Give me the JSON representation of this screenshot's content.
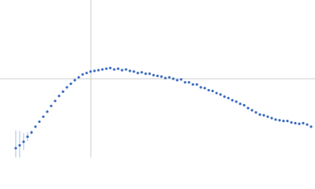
{
  "chart_data": {
    "type": "scatter",
    "color": "#3b6cc0",
    "error_color": "#a9bfe6",
    "guide_color": "#cccccc",
    "xlim": [
      0,
      6.0
    ],
    "ylim": [
      0,
      2.2
    ],
    "guides": {
      "x": 1.73,
      "y": 1.1
    },
    "x": [
      0.3,
      0.375,
      0.45,
      0.525,
      0.6,
      0.675,
      0.75,
      0.825,
      0.9,
      0.975,
      1.05,
      1.125,
      1.2,
      1.275,
      1.35,
      1.425,
      1.5,
      1.575,
      1.65,
      1.725,
      1.8,
      1.875,
      1.95,
      2.025,
      2.1,
      2.175,
      2.25,
      2.325,
      2.4,
      2.475,
      2.55,
      2.625,
      2.7,
      2.775,
      2.85,
      2.925,
      3.0,
      3.075,
      3.15,
      3.225,
      3.3,
      3.375,
      3.45,
      3.525,
      3.6,
      3.675,
      3.75,
      3.825,
      3.9,
      3.975,
      4.05,
      4.125,
      4.2,
      4.275,
      4.35,
      4.425,
      4.5,
      4.575,
      4.65,
      4.725,
      4.8,
      4.875,
      4.95,
      5.025,
      5.1,
      5.175,
      5.25,
      5.325,
      5.4,
      5.475,
      5.55,
      5.625,
      5.7,
      5.775,
      5.85,
      5.925
    ],
    "values": [
      0.13,
      0.17,
      0.22,
      0.29,
      0.35,
      0.43,
      0.5,
      0.57,
      0.64,
      0.72,
      0.79,
      0.86,
      0.92,
      0.98,
      1.03,
      1.08,
      1.12,
      1.16,
      1.18,
      1.2,
      1.21,
      1.22,
      1.23,
      1.24,
      1.25,
      1.23,
      1.24,
      1.22,
      1.23,
      1.21,
      1.2,
      1.18,
      1.19,
      1.17,
      1.17,
      1.15,
      1.14,
      1.13,
      1.11,
      1.12,
      1.1,
      1.08,
      1.09,
      1.05,
      1.05,
      1.02,
      1.02,
      0.98,
      0.97,
      0.94,
      0.93,
      0.9,
      0.88,
      0.85,
      0.83,
      0.8,
      0.78,
      0.75,
      0.73,
      0.69,
      0.66,
      0.63,
      0.6,
      0.59,
      0.57,
      0.55,
      0.53,
      0.52,
      0.51,
      0.51,
      0.49,
      0.48,
      0.47,
      0.48,
      0.46,
      0.43
    ],
    "errors": [
      0.25,
      0.2,
      0.12,
      0.06,
      0.03,
      0.01,
      0.01,
      0.01,
      0.01,
      0.01,
      0.01,
      0.01,
      0.01,
      0.01,
      0.01,
      0.01,
      0.01,
      0.01,
      0.01,
      0.01,
      0.01,
      0.01,
      0.01,
      0.01,
      0.01,
      0.01,
      0.01,
      0.01,
      0.01,
      0.01,
      0.01,
      0.01,
      0.01,
      0.01,
      0.01,
      0.01,
      0.01,
      0.01,
      0.01,
      0.01,
      0.01,
      0.01,
      0.01,
      0.01,
      0.01,
      0.01,
      0.01,
      0.01,
      0.01,
      0.01,
      0.01,
      0.01,
      0.01,
      0.01,
      0.01,
      0.01,
      0.01,
      0.01,
      0.01,
      0.01,
      0.01,
      0.01,
      0.01,
      0.01,
      0.01,
      0.01,
      0.01,
      0.01,
      0.01,
      0.01,
      0.01,
      0.01,
      0.01,
      0.01,
      0.01,
      0.01
    ]
  }
}
